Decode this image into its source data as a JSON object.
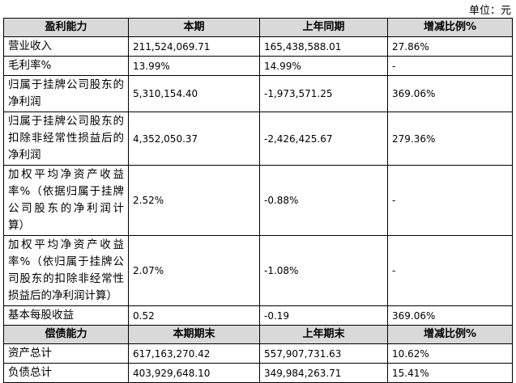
{
  "unit": "单位：元",
  "table": {
    "header": [
      "盈利能力",
      "本期",
      "上年同期",
      "增减比例%"
    ],
    "rows": [
      {
        "label": [
          "营业收入"
        ],
        "cells": [
          "211,524,069.71",
          "165,438,588.01",
          "27.86%"
        ]
      },
      {
        "label": [
          "毛利率%"
        ],
        "cells": [
          "13.99%",
          "14.99%",
          "-"
        ]
      },
      {
        "label": [
          "归属于挂牌公司股东的",
          "净利润"
        ],
        "cells": [
          "5,310,154.40",
          "-1,973,571.25",
          "369.06%"
        ]
      },
      {
        "label": [
          "归属于挂牌公司股东的",
          "扣除非经常性损益后的",
          "净利润"
        ],
        "cells": [
          "4,352,050.37",
          "-2,426,425.67",
          "279.36%"
        ]
      },
      {
        "label": [
          "加权平均净资产收益",
          "率%（依据归属于挂牌",
          "公司股东的净利润计",
          "算）"
        ],
        "cells": [
          "2.52%",
          "-0.88%",
          "-"
        ]
      },
      {
        "label": [
          "加权平均净资产收益",
          "率%（依归属于挂牌公",
          "司股东的扣除非经常性",
          "损益后的净利润计算）"
        ],
        "cells": [
          "2.07%",
          "-1.08%",
          "-"
        ]
      },
      {
        "label": [
          "基本每股收益"
        ],
        "cells": [
          "0.52",
          "-0.19",
          "369.06%"
        ]
      }
    ],
    "header2": [
      "偿债能力",
      "本期期末",
      "上年期末",
      "增减比例%"
    ],
    "rows2": [
      {
        "label": [
          "资产总计"
        ],
        "cells": [
          "617,163,270.42",
          "557,907,731.63",
          "10.62%"
        ]
      },
      {
        "label": [
          "负债总计"
        ],
        "cells": [
          "403,929,648.10",
          "349,984,263.71",
          "15.41%"
        ]
      }
    ]
  }
}
